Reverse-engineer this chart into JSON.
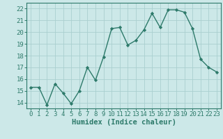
{
  "x": [
    0,
    1,
    2,
    3,
    4,
    5,
    6,
    7,
    8,
    9,
    10,
    11,
    12,
    13,
    14,
    15,
    16,
    17,
    18,
    19,
    20,
    21,
    22,
    23
  ],
  "y": [
    15.3,
    15.3,
    13.8,
    15.6,
    14.8,
    13.9,
    15.0,
    17.0,
    15.9,
    17.9,
    20.3,
    20.4,
    18.9,
    19.3,
    20.2,
    21.6,
    20.4,
    21.9,
    21.9,
    21.7,
    20.3,
    17.7,
    17.0,
    16.6
  ],
  "line_color": "#2d7a6a",
  "marker": "D",
  "marker_size": 2.2,
  "bg_color": "#cce8e8",
  "grid_color": "#aacfcf",
  "xlabel": "Humidex (Indice chaleur)",
  "xlim": [
    -0.5,
    23.5
  ],
  "ylim": [
    13.5,
    22.5
  ],
  "yticks": [
    14,
    15,
    16,
    17,
    18,
    19,
    20,
    21,
    22
  ],
  "xticks": [
    0,
    1,
    2,
    3,
    4,
    5,
    6,
    7,
    8,
    9,
    10,
    11,
    12,
    13,
    14,
    15,
    16,
    17,
    18,
    19,
    20,
    21,
    22,
    23
  ],
  "tick_fontsize": 6.5,
  "label_fontsize": 7.5,
  "linewidth": 1.0
}
